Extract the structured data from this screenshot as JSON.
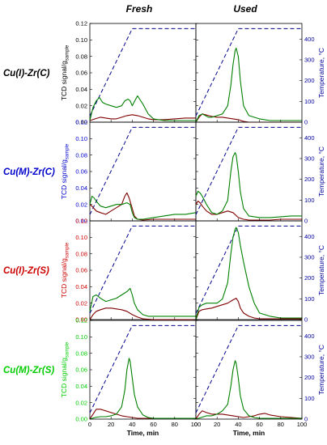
{
  "figure": {
    "column_titles": [
      "Fresh",
      "Used"
    ],
    "row_labels": [
      {
        "text": "Cu(I)-Zr(C)",
        "color": "#000000"
      },
      {
        "text": "Cu(M)-Zr(C)",
        "color": "#0000cc"
      },
      {
        "text": "Cu(I)-Zr(S)",
        "color": "#cc0000"
      },
      {
        "text": "Cu(M)-Zr(S)",
        "color": "#00cc00"
      }
    ],
    "left_axis_label_main": "TCD signal/g",
    "left_axis_label_sub": "sample",
    "left_axis_colors": [
      "#000000",
      "#0000cc",
      "#cc0000",
      "#00cc00"
    ],
    "right_axis_label": "Temperature, °C",
    "right_axis_color": "#000099",
    "x_axis_label": "Time, min",
    "colors": {
      "green": "#008000",
      "darkred": "#800000",
      "ramp": "#00008b"
    }
  },
  "chart_data": {
    "type": "line",
    "layout": "4 rows x 2 columns, shared axes",
    "x_ticks": [
      0,
      20,
      40,
      60,
      80,
      100
    ],
    "xlim": [
      0,
      100
    ],
    "left_ylim": [
      0,
      0.12
    ],
    "left_ticks": [
      0,
      0.02,
      0.04,
      0.06,
      0.08,
      0.1,
      0.12
    ],
    "right_ylim": [
      0,
      475
    ],
    "right_ticks": [
      0,
      100,
      200,
      300,
      400
    ],
    "temperature_program": {
      "x": [
        0,
        40,
        100
      ],
      "y": [
        30,
        450,
        450
      ]
    },
    "panels": [
      {
        "row": 0,
        "col": 0,
        "green": {
          "x": [
            0,
            3,
            6,
            9,
            12,
            15,
            20,
            25,
            30,
            33,
            36,
            38,
            40,
            42,
            45,
            50,
            55,
            60,
            70,
            80,
            90,
            100
          ],
          "y": [
            0.002,
            0.018,
            0.026,
            0.03,
            0.024,
            0.022,
            0.02,
            0.018,
            0.02,
            0.026,
            0.028,
            0.026,
            0.02,
            0.025,
            0.032,
            0.022,
            0.01,
            0.004,
            0.002,
            0.002,
            0.002,
            0.002
          ]
        },
        "darkred": {
          "x": [
            0,
            5,
            10,
            15,
            20,
            25,
            30,
            35,
            40,
            45,
            50,
            55,
            60,
            70,
            80,
            90,
            100
          ],
          "y": [
            0.002,
            0.004,
            0.006,
            0.005,
            0.004,
            0.004,
            0.006,
            0.008,
            0.009,
            0.008,
            0.006,
            0.004,
            0.003,
            0.003,
            0.004,
            0.005,
            0.005
          ]
        }
      },
      {
        "row": 0,
        "col": 1,
        "green": {
          "x": [
            0,
            3,
            6,
            9,
            12,
            15,
            20,
            25,
            30,
            33,
            35,
            37,
            38,
            40,
            42,
            45,
            50,
            60,
            70,
            80,
            90,
            100
          ],
          "y": [
            0.0,
            0.008,
            0.01,
            0.008,
            0.006,
            0.006,
            0.008,
            0.01,
            0.02,
            0.045,
            0.07,
            0.087,
            0.09,
            0.08,
            0.05,
            0.02,
            0.008,
            0.004,
            0.002,
            0.002,
            0.002,
            0.002
          ]
        },
        "darkred": {
          "x": [
            0,
            3,
            6,
            9,
            12,
            15,
            20,
            25,
            30,
            35,
            40,
            45,
            50,
            60,
            70,
            80,
            90,
            100
          ],
          "y": [
            0.0,
            0.006,
            0.01,
            0.009,
            0.008,
            0.007,
            0.006,
            0.006,
            0.005,
            0.004,
            0.003,
            0.001,
            0.0,
            0.0,
            0.0,
            0.0,
            0.0,
            0.0
          ]
        }
      },
      {
        "row": 1,
        "col": 0,
        "green": {
          "x": [
            0,
            2,
            4,
            6,
            10,
            15,
            20,
            25,
            30,
            35,
            38,
            40,
            42,
            45,
            50,
            60,
            70,
            80,
            90,
            100
          ],
          "y": [
            0.02,
            0.03,
            0.028,
            0.024,
            0.018,
            0.016,
            0.018,
            0.02,
            0.02,
            0.022,
            0.02,
            0.01,
            0.004,
            0.002,
            0.002,
            0.004,
            0.006,
            0.008,
            0.008,
            0.01
          ]
        },
        "darkred": {
          "x": [
            0,
            2,
            4,
            6,
            10,
            15,
            20,
            25,
            30,
            33,
            35,
            37,
            40,
            42,
            45,
            50,
            60,
            70,
            80,
            90,
            100
          ],
          "y": [
            0.02,
            0.018,
            0.015,
            0.012,
            0.01,
            0.008,
            0.012,
            0.016,
            0.02,
            0.03,
            0.034,
            0.028,
            0.015,
            0.006,
            0.002,
            0.001,
            0.002,
            0.002,
            0.002,
            0.002,
            0.002
          ]
        }
      },
      {
        "row": 1,
        "col": 1,
        "green": {
          "x": [
            0,
            2,
            4,
            6,
            10,
            15,
            20,
            25,
            30,
            33,
            35,
            37,
            38,
            40,
            42,
            45,
            50,
            60,
            70,
            80,
            90,
            100
          ],
          "y": [
            0.03,
            0.036,
            0.034,
            0.03,
            0.02,
            0.01,
            0.008,
            0.012,
            0.025,
            0.06,
            0.078,
            0.083,
            0.08,
            0.06,
            0.035,
            0.015,
            0.006,
            0.004,
            0.004,
            0.005,
            0.006,
            0.006
          ]
        },
        "darkred": {
          "x": [
            0,
            2,
            4,
            6,
            10,
            15,
            20,
            25,
            30,
            35,
            40,
            45,
            50,
            60,
            70,
            80,
            90,
            100
          ],
          "y": [
            0.02,
            0.024,
            0.022,
            0.018,
            0.012,
            0.008,
            0.008,
            0.01,
            0.012,
            0.01,
            0.004,
            0.002,
            0.001,
            0.001,
            0.001,
            0.002,
            0.002,
            0.002
          ]
        }
      },
      {
        "row": 2,
        "col": 0,
        "green": {
          "x": [
            0,
            3,
            6,
            10,
            15,
            20,
            25,
            30,
            35,
            38,
            40,
            42,
            45,
            50,
            55,
            60,
            70,
            80,
            90,
            100
          ],
          "y": [
            0.01,
            0.028,
            0.03,
            0.026,
            0.022,
            0.024,
            0.026,
            0.03,
            0.034,
            0.038,
            0.03,
            0.02,
            0.012,
            0.006,
            0.004,
            0.004,
            0.004,
            0.004,
            0.004,
            0.004
          ]
        },
        "darkred": {
          "x": [
            0,
            3,
            6,
            10,
            15,
            20,
            25,
            30,
            35,
            40,
            45,
            50,
            60,
            70,
            80,
            90,
            100
          ],
          "y": [
            0.0,
            0.006,
            0.01,
            0.012,
            0.014,
            0.014,
            0.013,
            0.012,
            0.01,
            0.006,
            0.003,
            0.001,
            0.0,
            0.0,
            0.0,
            0.0,
            0.0
          ]
        }
      },
      {
        "row": 2,
        "col": 1,
        "green": {
          "x": [
            0,
            3,
            6,
            10,
            15,
            20,
            25,
            30,
            33,
            35,
            37,
            38,
            40,
            42,
            45,
            50,
            55,
            60,
            70,
            80,
            90,
            100
          ],
          "y": [
            0.0,
            0.015,
            0.018,
            0.02,
            0.02,
            0.02,
            0.025,
            0.045,
            0.08,
            0.1,
            0.11,
            0.112,
            0.106,
            0.09,
            0.07,
            0.04,
            0.02,
            0.008,
            0.004,
            0.002,
            0.002,
            0.002
          ]
        },
        "darkred": {
          "x": [
            0,
            3,
            6,
            10,
            15,
            20,
            25,
            30,
            35,
            38,
            40,
            42,
            45,
            50,
            55,
            60,
            70,
            80,
            90,
            100
          ],
          "y": [
            0.0,
            0.01,
            0.012,
            0.013,
            0.014,
            0.016,
            0.018,
            0.02,
            0.024,
            0.026,
            0.022,
            0.014,
            0.008,
            0.004,
            0.002,
            0.001,
            0.001,
            0.001,
            0.001,
            0.001
          ]
        }
      },
      {
        "row": 3,
        "col": 0,
        "green": {
          "x": [
            0,
            5,
            10,
            15,
            20,
            25,
            30,
            33,
            35,
            37,
            38,
            40,
            42,
            45,
            50,
            55,
            60,
            70,
            80,
            90,
            100
          ],
          "y": [
            0.0,
            0.002,
            0.003,
            0.003,
            0.004,
            0.006,
            0.015,
            0.035,
            0.06,
            0.074,
            0.07,
            0.05,
            0.03,
            0.015,
            0.005,
            0.002,
            0.001,
            0.001,
            0.001,
            0.001,
            0.001
          ]
        },
        "darkred": {
          "x": [
            0,
            3,
            6,
            10,
            15,
            20,
            25,
            30,
            35,
            40,
            45,
            50,
            60,
            70,
            80,
            90,
            100
          ],
          "y": [
            0.0,
            0.006,
            0.012,
            0.012,
            0.01,
            0.008,
            0.006,
            0.004,
            0.003,
            0.002,
            0.001,
            0.001,
            0.001,
            0.001,
            0.001,
            0.001,
            0.001
          ]
        }
      },
      {
        "row": 3,
        "col": 1,
        "green": {
          "x": [
            0,
            5,
            10,
            15,
            20,
            25,
            30,
            33,
            35,
            37,
            38,
            40,
            42,
            45,
            50,
            55,
            60,
            70,
            80,
            90,
            100
          ],
          "y": [
            0.0,
            0.002,
            0.004,
            0.004,
            0.006,
            0.01,
            0.018,
            0.04,
            0.06,
            0.071,
            0.068,
            0.05,
            0.028,
            0.012,
            0.004,
            0.002,
            0.001,
            0.001,
            0.001,
            0.001,
            0.001
          ]
        },
        "darkred": {
          "x": [
            0,
            3,
            6,
            10,
            15,
            20,
            25,
            30,
            35,
            40,
            45,
            50,
            55,
            60,
            65,
            70,
            80,
            90,
            100
          ],
          "y": [
            0.0,
            0.006,
            0.01,
            0.008,
            0.006,
            0.006,
            0.006,
            0.005,
            0.004,
            0.003,
            0.002,
            0.003,
            0.004,
            0.006,
            0.007,
            0.005,
            0.003,
            0.002,
            0.001
          ]
        }
      }
    ]
  }
}
